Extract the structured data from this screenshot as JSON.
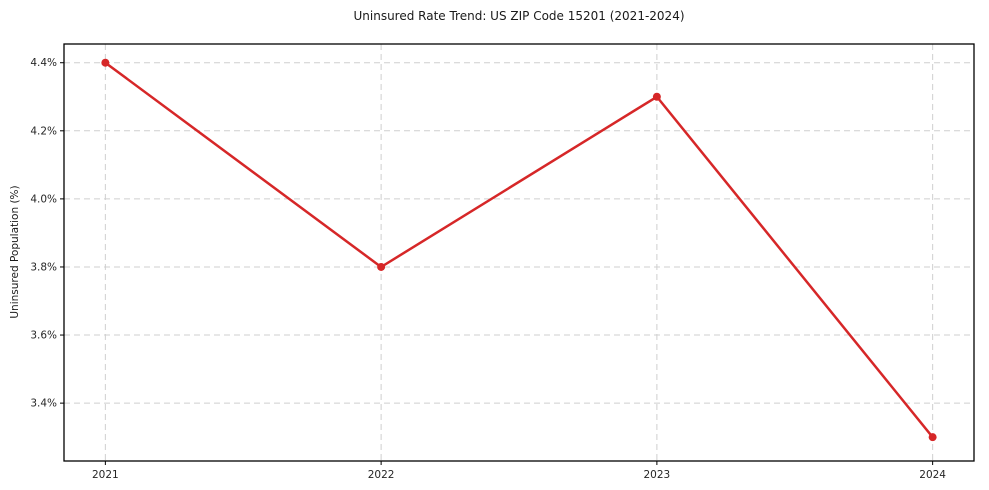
{
  "figure": {
    "background": "#ffffff"
  },
  "chart_data": {
    "type": "line",
    "title": "Uninsured Rate Trend: US ZIP Code 15201 (2021-2024)",
    "xlabel": "",
    "ylabel": "Uninsured Population (%)",
    "x": [
      2021,
      2022,
      2023,
      2024
    ],
    "values": [
      4.4,
      3.8,
      4.3,
      3.3
    ],
    "xticks": [
      2021,
      2022,
      2023,
      2024
    ],
    "xtick_labels": [
      "2021",
      "2022",
      "2023",
      "2024"
    ],
    "yticks": [
      3.4,
      3.6,
      3.8,
      4.0,
      4.2,
      4.4
    ],
    "ytick_labels": [
      "3.4%",
      "3.6%",
      "3.8%",
      "4.0%",
      "4.2%",
      "4.4%"
    ],
    "xlim": [
      2020.85,
      2024.15
    ],
    "ylim": [
      3.23,
      4.455
    ],
    "grid": true,
    "grid_style": "dashed",
    "legend": false,
    "marker": "circle",
    "marker_radius": 4,
    "line_color": "#d62728",
    "grid_color": "#cfcfcf",
    "axis_color": "#000000",
    "text_color": "#262626"
  }
}
